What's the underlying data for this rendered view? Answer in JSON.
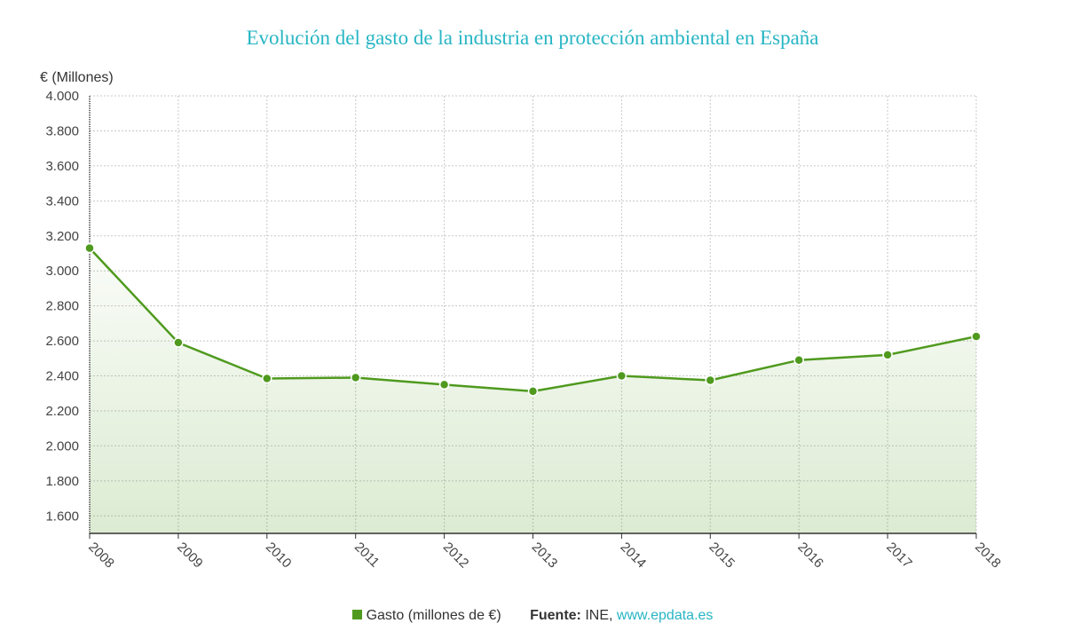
{
  "chart_data": {
    "type": "line",
    "title": "Evolución del gasto de la industria en protección ambiental en España",
    "ylabel": "€ (Millones)",
    "xlabel": "",
    "ylim": [
      1500,
      4000
    ],
    "yticks": [
      1600,
      1800,
      2000,
      2200,
      2400,
      2600,
      2800,
      3000,
      3200,
      3400,
      3600,
      3800,
      4000
    ],
    "ytick_labels": [
      "1.600",
      "1.800",
      "2.000",
      "2.200",
      "2.400",
      "2.600",
      "2.800",
      "3.000",
      "3.200",
      "3.400",
      "3.600",
      "3.800",
      "4.000"
    ],
    "categories": [
      "2008",
      "2009",
      "2010",
      "2011",
      "2012",
      "2013",
      "2014",
      "2015",
      "2016",
      "2017",
      "2018"
    ],
    "series": [
      {
        "name": "Gasto (millones de €)",
        "color": "#4f9a1e",
        "values": [
          3130,
          2590,
          2385,
          2390,
          2350,
          2312,
          2400,
          2375,
          2490,
          2520,
          2625
        ]
      }
    ],
    "grid": true,
    "area_fill": true,
    "legend_position": "bottom"
  },
  "legend": {
    "series_label": "Gasto (millones de €)",
    "source_label": "Fuente:",
    "source_name": "INE,",
    "source_link": "www.epdata.es"
  }
}
